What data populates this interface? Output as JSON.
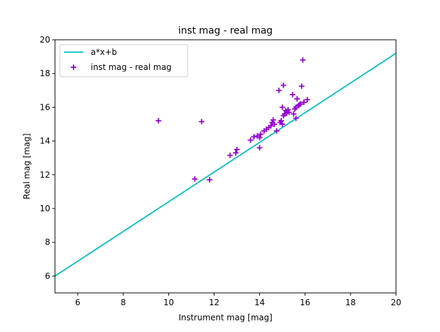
{
  "chart_data": {
    "type": "scatter",
    "title": "inst mag - real mag",
    "xlabel": "Instrument mag [mag]",
    "ylabel": "Real mag [mag]",
    "xlim": [
      5,
      20
    ],
    "ylim": [
      5,
      20
    ],
    "xticks": [
      6,
      8,
      10,
      12,
      14,
      16,
      18,
      20
    ],
    "yticks": [
      6,
      8,
      10,
      12,
      14,
      16,
      18,
      20
    ],
    "grid": false,
    "legend_position": "top-left",
    "series": [
      {
        "name": "a*x+b",
        "kind": "line",
        "color": "#00bfbf",
        "x": [
          5,
          20
        ],
        "y": [
          6.0,
          19.2
        ]
      },
      {
        "name": "inst mag - real mag",
        "kind": "scatter",
        "marker": "+",
        "color": "#9400d3",
        "x": [
          9.55,
          11.45,
          11.15,
          11.8,
          12.7,
          12.95,
          13.0,
          13.6,
          13.75,
          13.9,
          14.0,
          14.0,
          14.05,
          14.2,
          14.3,
          14.4,
          14.5,
          14.55,
          14.6,
          14.65,
          14.75,
          14.85,
          14.9,
          14.95,
          15.0,
          15.0,
          15.05,
          15.05,
          15.1,
          15.15,
          15.2,
          15.25,
          15.3,
          15.45,
          15.5,
          15.55,
          15.6,
          15.6,
          15.65,
          15.7,
          15.75,
          15.8,
          15.85,
          15.9,
          15.95,
          16.1
        ],
        "y": [
          15.2,
          15.15,
          11.75,
          11.7,
          13.15,
          13.3,
          13.5,
          14.05,
          14.25,
          14.3,
          14.2,
          13.6,
          14.4,
          14.6,
          14.7,
          14.8,
          14.9,
          15.1,
          15.25,
          15.0,
          14.6,
          17.0,
          15.1,
          15.2,
          15.0,
          16.0,
          15.5,
          17.3,
          15.6,
          15.8,
          15.65,
          15.85,
          15.7,
          16.75,
          15.6,
          15.9,
          15.35,
          16.0,
          16.5,
          16.1,
          16.15,
          16.2,
          17.25,
          18.8,
          16.3,
          16.45
        ]
      }
    ]
  }
}
